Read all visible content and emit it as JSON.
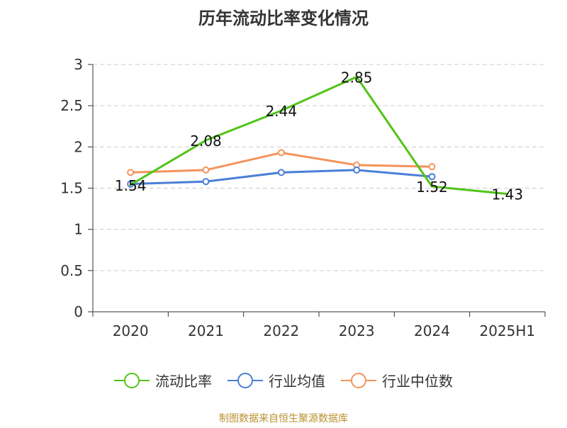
{
  "chart_data": {
    "type": "line",
    "title": "历年流动比率变化情况",
    "categories": [
      "2020",
      "2021",
      "2022",
      "2023",
      "2024",
      "2025H1"
    ],
    "ylim": [
      0,
      3
    ],
    "yticks": [
      0,
      0.5,
      1,
      1.5,
      2,
      2.5,
      3
    ],
    "ytick_labels": [
      "0",
      "0.5",
      "1",
      "1.5",
      "2",
      "2.5",
      "3"
    ],
    "grid": true,
    "legend_position": "bottom",
    "series": [
      {
        "name": "流动比率",
        "color": "#52c41a",
        "values": [
          1.54,
          2.08,
          2.44,
          2.85,
          1.52,
          1.43
        ],
        "labels": [
          "1.54",
          "2.08",
          "2.44",
          "2.85",
          "1.52",
          "1.43"
        ]
      },
      {
        "name": "行业均值",
        "color": "#4a7fd6",
        "values": [
          1.55,
          1.58,
          1.69,
          1.72,
          1.64,
          null
        ]
      },
      {
        "name": "行业中位数",
        "color": "#f5935b",
        "values": [
          1.69,
          1.72,
          1.93,
          1.78,
          1.76,
          null
        ]
      }
    ]
  },
  "footer": {
    "source": "制图数据来自恒生聚源数据库",
    "color": "#b8922e"
  }
}
